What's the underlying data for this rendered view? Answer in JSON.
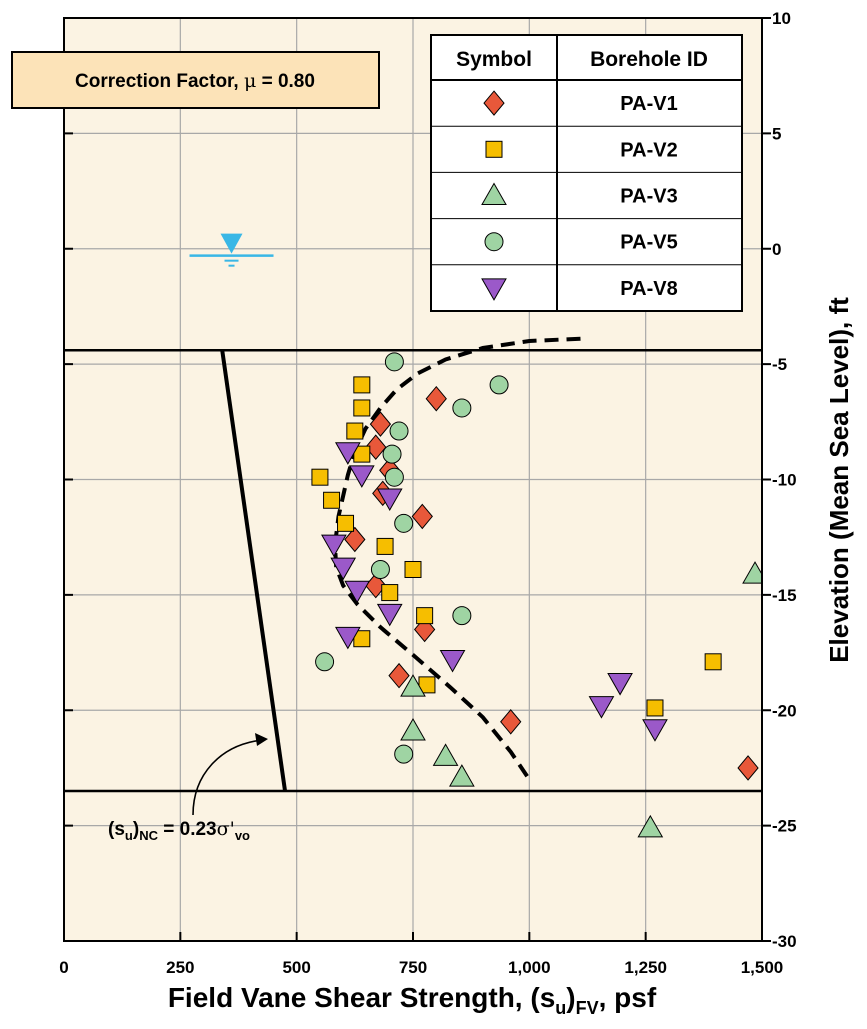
{
  "chart_data": {
    "type": "scatter",
    "xlabel": "Field Vane Shear Strength, (s",
    "xlabel_sub1": "u",
    "xlabel_paren": ")",
    "xlabel_sub2": "FV",
    "xlabel_end": ", psf",
    "ylabel": "Elevation (Mean Sea Level), ft",
    "xlim": [
      0,
      1500
    ],
    "ylim": [
      -30,
      10
    ],
    "x_ticks": [
      0,
      250,
      500,
      750,
      1000,
      1250,
      1500
    ],
    "x_tick_labels": [
      "0",
      "250",
      "500",
      "750",
      "1,000",
      "1,250",
      "1,500"
    ],
    "y_ticks": [
      10,
      5,
      0,
      -5,
      -10,
      -15,
      -20,
      -25,
      -30
    ],
    "y_tick_labels": [
      "10",
      "5",
      "0",
      "-5",
      "-10",
      "-15",
      "-20",
      "-25",
      "-30"
    ],
    "grid": true,
    "plot_background": "#fbf3e3",
    "horizontal_lines": [
      -4.4,
      -23.5
    ],
    "correction_box": {
      "text": "Correction Factor, ",
      "mu": "μ",
      "rest": " = 0.80",
      "background": "#fce3b8"
    },
    "water_table_elevation": -0.3,
    "water_table_x": 360,
    "nc_line": {
      "x": [
        340,
        475
      ],
      "y": [
        -4.4,
        -23.5
      ],
      "label_main": "(s",
      "label_sub1": "u",
      "label_close": ")",
      "label_sub2": "NC",
      "label_eq": " = 0.23",
      "label_sigma": "σ'",
      "label_sub3": "vo"
    },
    "trend_curve": {
      "x": [
        1110,
        1000,
        900,
        820,
        760,
        715,
        680,
        648,
        625,
        610,
        600,
        590,
        585,
        583,
        585,
        600,
        630,
        680,
        750,
        830,
        900,
        960,
        1000
      ],
      "y": [
        -3.9,
        -4.0,
        -4.3,
        -4.8,
        -5.4,
        -6.1,
        -6.9,
        -7.8,
        -8.8,
        -9.8,
        -10.7,
        -11.6,
        -12.4,
        -13.1,
        -13.8,
        -14.6,
        -15.4,
        -16.4,
        -17.6,
        -19.0,
        -20.3,
        -21.8,
        -23.0
      ]
    },
    "legend": {
      "header_symbol": "Symbol",
      "header_id": "Borehole ID",
      "position": "top-right"
    },
    "series": [
      {
        "name": "PA-V1",
        "marker": "diamond",
        "color": "#e8583a",
        "x": [
          800,
          680,
          670,
          700,
          685,
          770,
          625,
          670,
          775,
          720,
          960,
          1470
        ],
        "y": [
          -6.5,
          -7.6,
          -8.6,
          -9.6,
          -10.6,
          -11.6,
          -12.6,
          -14.6,
          -16.5,
          -18.5,
          -20.5,
          -22.5
        ]
      },
      {
        "name": "PA-V2",
        "marker": "square",
        "color": "#f6be00",
        "x": [
          640,
          640,
          625,
          640,
          550,
          575,
          605,
          690,
          750,
          700,
          775,
          640,
          780,
          1395,
          1270
        ],
        "y": [
          -5.9,
          -6.9,
          -7.9,
          -8.9,
          -9.9,
          -10.9,
          -11.9,
          -12.9,
          -13.9,
          -14.9,
          -15.9,
          -16.9,
          -18.9,
          -17.9,
          -19.9
        ]
      },
      {
        "name": "PA-V3",
        "marker": "triangle-up",
        "color": "#9fd4a3",
        "x": [
          1485,
          750,
          750,
          820,
          855,
          1260
        ],
        "y": [
          -14.1,
          -19.0,
          -20.9,
          -22.0,
          -22.9,
          -25.1
        ]
      },
      {
        "name": "PA-V5",
        "marker": "circle",
        "color": "#9fd4a3",
        "x": [
          710,
          935,
          855,
          720,
          705,
          710,
          730,
          680,
          855,
          560,
          730
        ],
        "y": [
          -4.9,
          -5.9,
          -6.9,
          -7.9,
          -8.9,
          -9.9,
          -11.9,
          -13.9,
          -15.9,
          -17.9,
          -21.9
        ]
      },
      {
        "name": "PA-V8",
        "marker": "triangle-down",
        "color": "#9b59c9",
        "x": [
          610,
          640,
          700,
          580,
          600,
          630,
          700,
          610,
          835,
          1195,
          1155,
          1270
        ],
        "y": [
          -8.8,
          -9.8,
          -10.8,
          -12.8,
          -13.8,
          -14.8,
          -15.8,
          -16.8,
          -17.8,
          -18.8,
          -19.8,
          -20.8
        ]
      }
    ]
  }
}
